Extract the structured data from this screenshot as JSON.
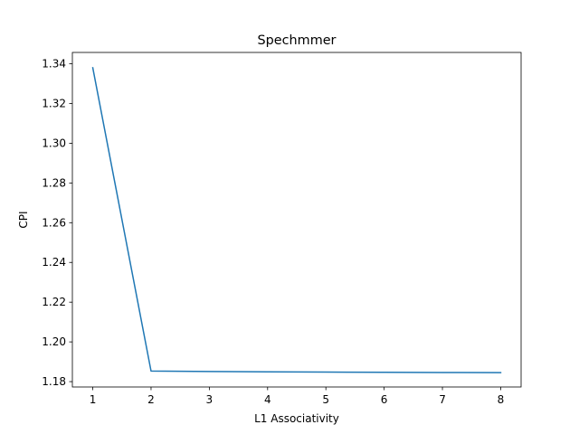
{
  "chart_data": {
    "type": "line",
    "title": "Spechmmer",
    "xlabel": "L1 Associativity",
    "ylabel": "CPI",
    "xlim": [
      0.65,
      8.35
    ],
    "ylim": [
      1.1773,
      1.3457
    ],
    "xticks": [
      1,
      2,
      3,
      4,
      5,
      6,
      7,
      8
    ],
    "xtick_labels": [
      "1",
      "2",
      "3",
      "4",
      "5",
      "6",
      "7",
      "8"
    ],
    "yticks": [
      1.18,
      1.2,
      1.22,
      1.24,
      1.26,
      1.28,
      1.3,
      1.32,
      1.34
    ],
    "ytick_labels": [
      "1.18",
      "1.20",
      "1.22",
      "1.24",
      "1.26",
      "1.28",
      "1.30",
      "1.32",
      "1.34"
    ],
    "grid": false,
    "series": [
      {
        "name": "CPI",
        "color": "#1f77b4",
        "x": [
          1,
          2,
          3,
          4,
          5,
          6,
          7,
          8
        ],
        "y": [
          1.338,
          1.1853,
          1.1851,
          1.1849,
          1.1848,
          1.1847,
          1.1846,
          1.1845
        ]
      }
    ]
  }
}
